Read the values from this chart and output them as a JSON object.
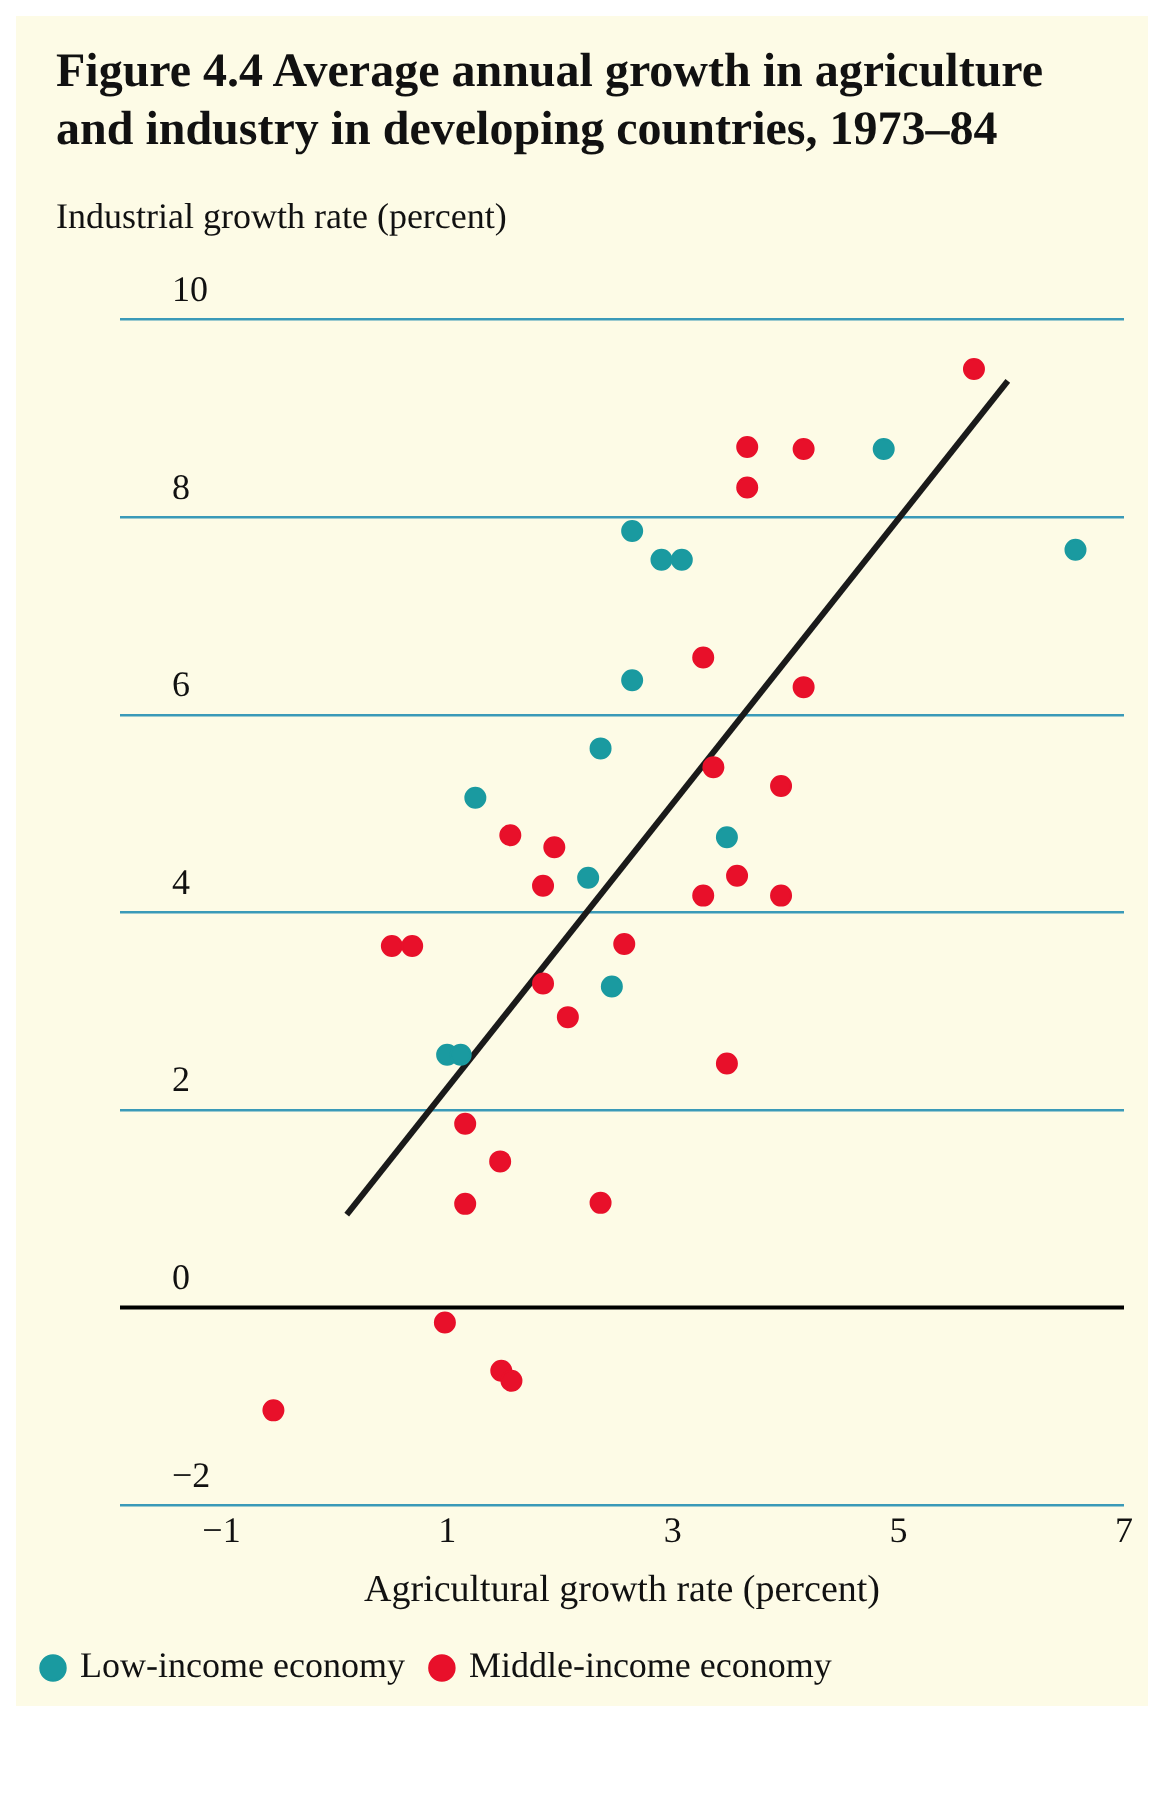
{
  "chart_data": {
    "type": "scatter",
    "title": "Figure 4.4  Average annual growth in agriculture and industry in developing countries, 1973–84",
    "xlabel": "Agricultural growth rate (percent)",
    "ylabel": "Industrial growth rate (percent)",
    "xlim": [
      -1.9,
      7
    ],
    "xticks": [
      -1,
      1,
      3,
      5,
      7
    ],
    "ylim": [
      -2,
      10
    ],
    "yticks": [
      -2,
      0,
      2,
      4,
      6,
      8,
      10
    ],
    "grid": "y",
    "legend": "bottom",
    "ref_lines": [
      {
        "axis": "y",
        "value": 0,
        "color": "#000000"
      }
    ],
    "series": [
      {
        "name": "Low-income economy",
        "color": "#1a9aa0",
        "marker": "circle",
        "x": [
          4.87,
          2.64,
          2.9,
          3.08,
          6.57,
          2.64,
          2.36,
          1.25,
          3.48,
          2.25,
          2.46,
          1.0,
          1.12
        ],
        "values": [
          8.69,
          7.86,
          7.57,
          7.57,
          7.67,
          6.35,
          5.66,
          5.16,
          4.76,
          4.35,
          3.25,
          2.56,
          2.56
        ]
      },
      {
        "name": "Middle-income economy",
        "color": "#e8102a",
        "marker": "circle",
        "x": [
          5.67,
          3.66,
          4.16,
          3.66,
          3.27,
          4.16,
          3.36,
          3.96,
          1.56,
          1.95,
          1.85,
          3.57,
          3.27,
          3.96,
          0.51,
          0.69,
          2.57,
          1.85,
          2.07,
          3.48,
          1.16,
          1.47,
          1.16,
          2.36,
          0.98,
          1.48,
          1.57,
          -0.54
        ],
        "values": [
          9.5,
          8.71,
          8.69,
          8.3,
          6.58,
          6.28,
          5.47,
          5.28,
          4.78,
          4.66,
          4.27,
          4.37,
          4.17,
          4.17,
          3.66,
          3.66,
          3.68,
          3.28,
          2.94,
          2.47,
          1.86,
          1.48,
          1.05,
          1.06,
          -0.15,
          -0.64,
          -0.74,
          -1.04
        ]
      },
      {
        "type": "line",
        "color": "#1a1a1a",
        "marker": "none",
        "x": [
          0.11,
          5.97
        ],
        "values": [
          0.94,
          9.38
        ]
      }
    ]
  }
}
